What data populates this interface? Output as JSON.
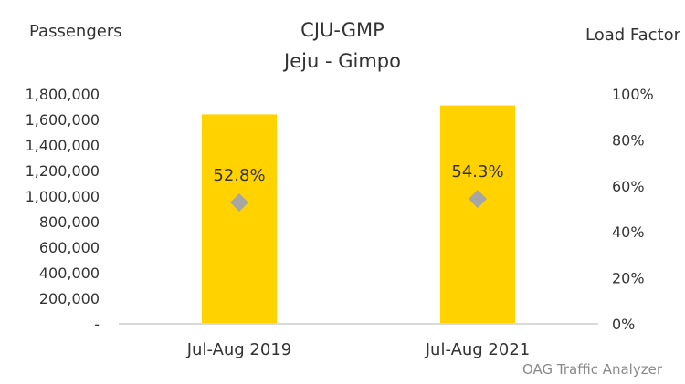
{
  "chart_data": {
    "type": "bar",
    "title": "CJU-GMP",
    "subtitle": "Jeju - Gimpo",
    "ylabel_left": "Passengers",
    "ylabel_right": "Load Factor",
    "categories": [
      "Jul-Aug 2019",
      "Jul-Aug 2021"
    ],
    "series": [
      {
        "type": "bar",
        "axis": "left",
        "values": [
          1640000,
          1710000
        ]
      },
      {
        "type": "scatter",
        "axis": "right",
        "values": [
          52.8,
          54.3
        ],
        "labels": [
          "52.8%",
          "54.3%"
        ]
      }
    ],
    "ylim_left": [
      0,
      1800000
    ],
    "ylim_right": [
      0,
      100
    ],
    "left_ticks": [
      "-",
      "200,000",
      "400,000",
      "600,000",
      "800,000",
      "1,000,000",
      "1,200,000",
      "1,400,000",
      "1,600,000",
      "1,800,000"
    ],
    "right_ticks": [
      "0%",
      "20%",
      "40%",
      "60%",
      "80%",
      "100%"
    ],
    "grid": false,
    "legend": "none",
    "colors": {
      "bar": "#FFD200",
      "marker": "#A6A6A6",
      "axis": "#D9D9D9"
    },
    "source": "OAG Traffic Analyzer"
  }
}
